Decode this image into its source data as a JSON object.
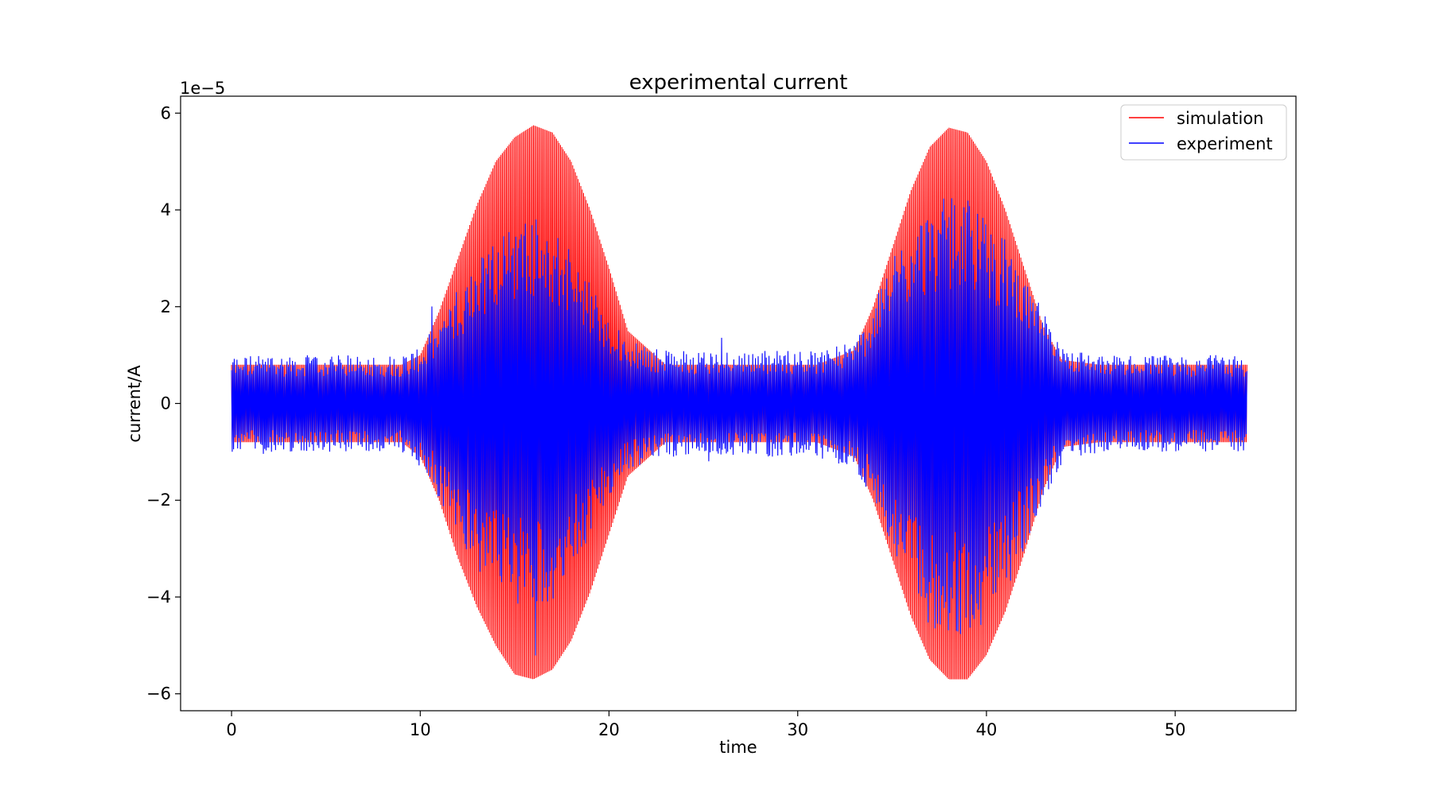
{
  "chart_data": {
    "type": "line",
    "title": "experimental current",
    "xlabel": "time",
    "ylabel": "current/A",
    "y_offset_text": "1e−5",
    "xlim": [
      -2.7,
      56.4
    ],
    "ylim": [
      -6.35,
      6.35
    ],
    "x_ticks": [
      0,
      10,
      20,
      30,
      40,
      50
    ],
    "x_tick_labels": [
      "0",
      "10",
      "20",
      "30",
      "40",
      "50"
    ],
    "y_ticks": [
      6,
      4,
      2,
      0,
      -2,
      -4,
      -6
    ],
    "y_tick_labels": [
      "6",
      "4",
      "2",
      "0",
      "−2",
      "−4",
      "−6"
    ],
    "grid": false,
    "legend_position": "top-right",
    "x_range": [
      0,
      53.8
    ],
    "series": [
      {
        "name": "simulation",
        "color": "#ff0000",
        "envelope": {
          "x": [
            0,
            5,
            9,
            10,
            11,
            12,
            13,
            14,
            15,
            16,
            17,
            18,
            19,
            20,
            21,
            23,
            27,
            31,
            33,
            34,
            35,
            36,
            37,
            38,
            39,
            40,
            41,
            42,
            43,
            44,
            46,
            50,
            53.8
          ],
          "upper": [
            0.8,
            0.8,
            0.8,
            1.0,
            1.9,
            3.0,
            4.1,
            5.0,
            5.5,
            5.75,
            5.6,
            5.0,
            4.0,
            2.8,
            1.5,
            0.8,
            0.8,
            0.8,
            1.1,
            2.0,
            3.2,
            4.4,
            5.3,
            5.7,
            5.6,
            5.0,
            4.0,
            2.8,
            1.6,
            0.9,
            0.8,
            0.8,
            0.8
          ],
          "lower": [
            -0.8,
            -0.8,
            -0.8,
            -1.1,
            -2.0,
            -3.2,
            -4.2,
            -5.0,
            -5.6,
            -5.7,
            -5.5,
            -4.9,
            -3.9,
            -2.7,
            -1.5,
            -0.8,
            -0.8,
            -0.8,
            -1.1,
            -2.0,
            -3.2,
            -4.4,
            -5.3,
            -5.7,
            -5.7,
            -5.2,
            -4.3,
            -3.1,
            -1.8,
            -0.9,
            -0.8,
            -0.8,
            -0.8
          ]
        }
      },
      {
        "name": "experiment",
        "color": "#0000ff",
        "envelope": {
          "x": [
            0,
            5,
            9,
            10,
            11,
            12,
            13,
            14,
            15,
            16,
            17,
            18,
            19,
            20,
            21,
            23,
            27,
            31,
            33,
            34,
            35,
            36,
            37,
            38,
            39,
            40,
            41,
            42,
            43,
            44,
            46,
            50,
            53.8
          ],
          "upper": [
            1.0,
            1.0,
            1.0,
            1.2,
            1.7,
            2.4,
            3.0,
            3.5,
            3.8,
            3.9,
            3.7,
            3.2,
            2.5,
            1.8,
            1.3,
            1.1,
            1.1,
            1.1,
            1.3,
            2.0,
            3.0,
            3.7,
            4.1,
            4.3,
            4.2,
            3.9,
            3.4,
            2.7,
            1.9,
            1.2,
            1.0,
            1.0,
            1.0
          ],
          "lower": [
            -1.0,
            -1.0,
            -1.0,
            -1.3,
            -2.0,
            -2.9,
            -3.5,
            -4.0,
            -4.2,
            -4.3,
            -4.1,
            -3.6,
            -2.8,
            -2.0,
            -1.4,
            -1.1,
            -1.1,
            -1.1,
            -1.4,
            -2.1,
            -3.1,
            -4.0,
            -4.6,
            -4.8,
            -4.8,
            -4.6,
            -4.0,
            -3.0,
            -2.0,
            -1.3,
            -1.0,
            -1.0,
            -1.0
          ]
        }
      }
    ]
  }
}
